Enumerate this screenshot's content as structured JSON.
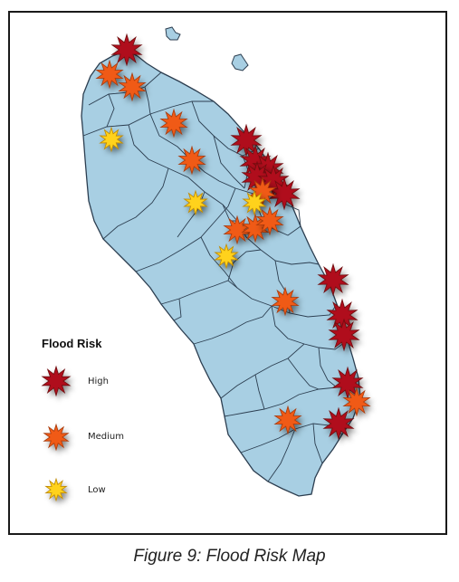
{
  "map": {
    "legend_title": "Flood Risk",
    "legend": [
      {
        "label": "High",
        "color": "#b0101a",
        "icon": "high-risk-star-icon"
      },
      {
        "label": "Medium",
        "color": "#f05a14",
        "icon": "medium-risk-star-icon"
      },
      {
        "label": "Low",
        "color": "#ffd21e",
        "icon": "low-risk-star-icon"
      }
    ],
    "land_color": "#a8cfe3",
    "border_color": "#2c3e50"
  },
  "caption": "Figure 9: Flood Risk Map"
}
